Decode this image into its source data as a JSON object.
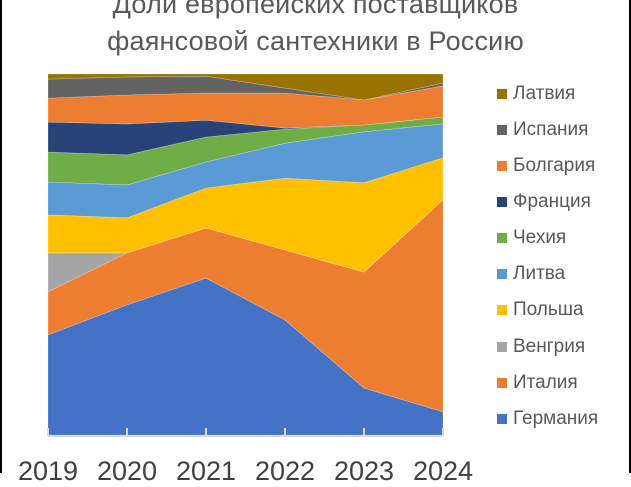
{
  "chart_data": {
    "type": "area",
    "stacked": "percent",
    "title": "Доли европейских поставщиков фаянсовой сантехники в Россию",
    "title_lines": [
      "Доли европейских поставщиков",
      "фаянсовой сантехники в Россию"
    ],
    "xlabel": "",
    "ylabel": "",
    "ylim": [
      0,
      100
    ],
    "grid": false,
    "legend_position": "right",
    "categories": [
      "2019",
      "2020",
      "2021",
      "2022",
      "2023",
      "2024"
    ],
    "series": [
      {
        "name": "Германия",
        "color": "#4472C4",
        "values": [
          27.7,
          36.0,
          43.5,
          31.9,
          13.0,
          6.4
        ]
      },
      {
        "name": "Италия",
        "color": "#ED7D31",
        "values": [
          11.9,
          14.4,
          13.9,
          19.4,
          32.1,
          58.7
        ]
      },
      {
        "name": "Венгрия",
        "color": "#A5A5A5",
        "values": [
          10.8,
          0.0,
          0.0,
          0.0,
          0.0,
          0.0
        ]
      },
      {
        "name": "Польша",
        "color": "#FFC000",
        "values": [
          10.5,
          9.7,
          11.1,
          19.9,
          24.7,
          11.6
        ]
      },
      {
        "name": "Литва",
        "color": "#5B9BD5",
        "values": [
          9.1,
          9.1,
          7.2,
          9.7,
          14.1,
          9.4
        ]
      },
      {
        "name": "Чехия",
        "color": "#70AD47",
        "values": [
          8.3,
          8.3,
          6.9,
          3.9,
          1.9,
          1.9
        ]
      },
      {
        "name": "Франция",
        "color": "#264478",
        "values": [
          8.3,
          8.6,
          4.7,
          0.3,
          0.0,
          0.0
        ]
      },
      {
        "name": "Болгария",
        "color": "#ED7D31",
        "values": [
          6.6,
          8.0,
          7.5,
          9.7,
          6.9,
          8.6
        ]
      },
      {
        "name": "Испания",
        "color": "#636363",
        "values": [
          5.3,
          5.0,
          4.7,
          1.4,
          0.0,
          0.8
        ]
      },
      {
        "name": "Латвия",
        "color": "#997300",
        "values": [
          1.4,
          0.8,
          0.6,
          3.9,
          7.2,
          2.5
        ]
      }
    ]
  },
  "legend": {
    "items": [
      {
        "label": "Латвия",
        "color": "#997300"
      },
      {
        "label": "Испания",
        "color": "#636363"
      },
      {
        "label": "Болгария",
        "color": "#ED7D31"
      },
      {
        "label": "Франция",
        "color": "#264478"
      },
      {
        "label": "Чехия",
        "color": "#70AD47"
      },
      {
        "label": "Литва",
        "color": "#5B9BD5"
      },
      {
        "label": "Польша",
        "color": "#FFC000"
      },
      {
        "label": "Венгрия",
        "color": "#A5A5A5"
      },
      {
        "label": "Италия",
        "color": "#ED7D31"
      },
      {
        "label": "Германия",
        "color": "#4472C4"
      }
    ]
  },
  "axis": {
    "x_labels": [
      "2019",
      "2020",
      "2021",
      "2022",
      "2023",
      "2024"
    ],
    "line_color": "#D9D9D9"
  }
}
